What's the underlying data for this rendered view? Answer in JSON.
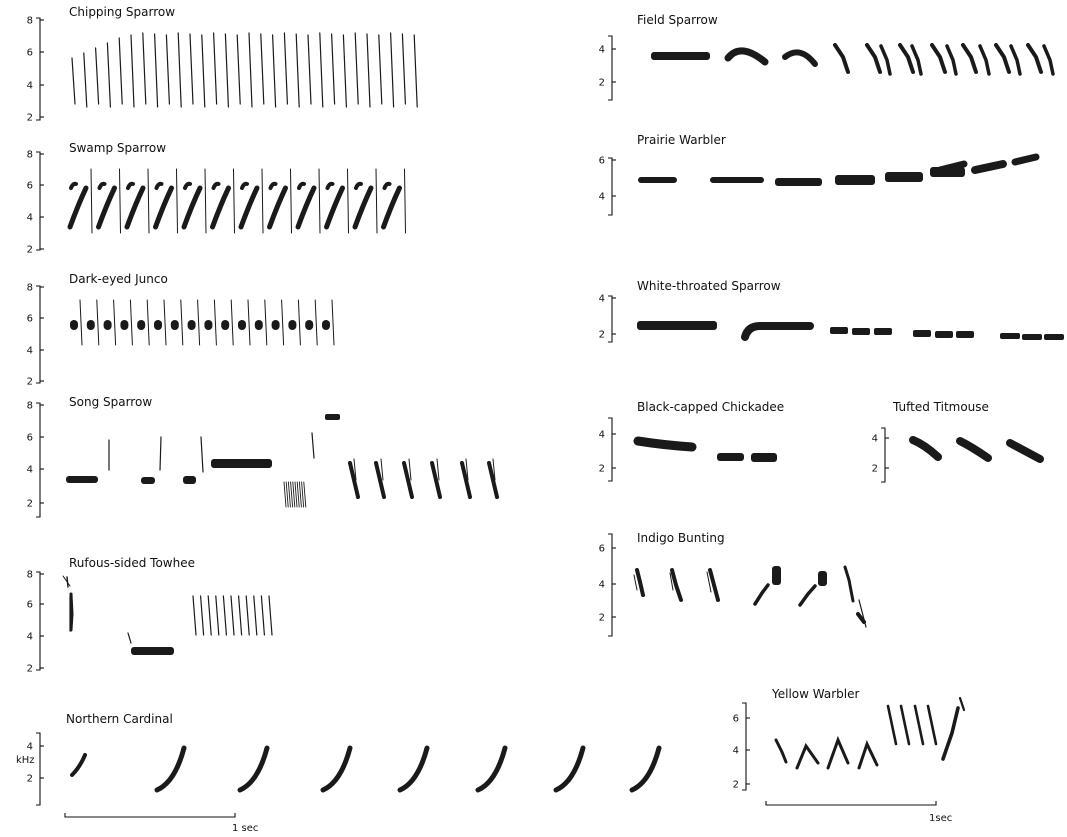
{
  "panels": [
    {
      "id": "chipping-sparrow",
      "title": "Chipping Sparrow",
      "ticks": [
        "8",
        "6",
        "4",
        "2"
      ]
    },
    {
      "id": "swamp-sparrow",
      "title": "Swamp Sparrow",
      "ticks": [
        "8",
        "6",
        "4",
        "2"
      ]
    },
    {
      "id": "dark-eyed-junco",
      "title": "Dark-eyed Junco",
      "ticks": [
        "8",
        "6",
        "4",
        "2"
      ]
    },
    {
      "id": "song-sparrow",
      "title": "Song Sparrow",
      "ticks": [
        "8",
        "6",
        "4",
        "2"
      ]
    },
    {
      "id": "rufous-sided-towhee",
      "title": "Rufous-sided Towhee",
      "ticks": [
        "8",
        "6",
        "4",
        "2"
      ]
    },
    {
      "id": "northern-cardinal",
      "title": "Northern Cardinal",
      "ticks": [
        "4",
        "2"
      ],
      "unit": "kHz"
    },
    {
      "id": "field-sparrow",
      "title": "Field Sparrow",
      "ticks": [
        "4",
        "2"
      ]
    },
    {
      "id": "prairie-warbler",
      "title": "Prairie Warbler",
      "ticks": [
        "6",
        "4"
      ]
    },
    {
      "id": "white-throated-sparrow",
      "title": "White-throated Sparrow",
      "ticks": [
        "4",
        "2"
      ]
    },
    {
      "id": "black-capped-chickadee",
      "title": "Black-capped Chickadee",
      "ticks": [
        "4",
        "2"
      ]
    },
    {
      "id": "tufted-titmouse",
      "title": "Tufted Titmouse",
      "ticks": [
        "4",
        "2"
      ]
    },
    {
      "id": "indigo-bunting",
      "title": "Indigo Bunting",
      "ticks": [
        "6",
        "4",
        "2"
      ]
    },
    {
      "id": "yellow-warbler",
      "title": "Yellow Warbler",
      "ticks": [
        "6",
        "4",
        "2"
      ]
    }
  ],
  "scale_bars": [
    {
      "label": "1 sec"
    },
    {
      "label": "1sec"
    }
  ]
}
